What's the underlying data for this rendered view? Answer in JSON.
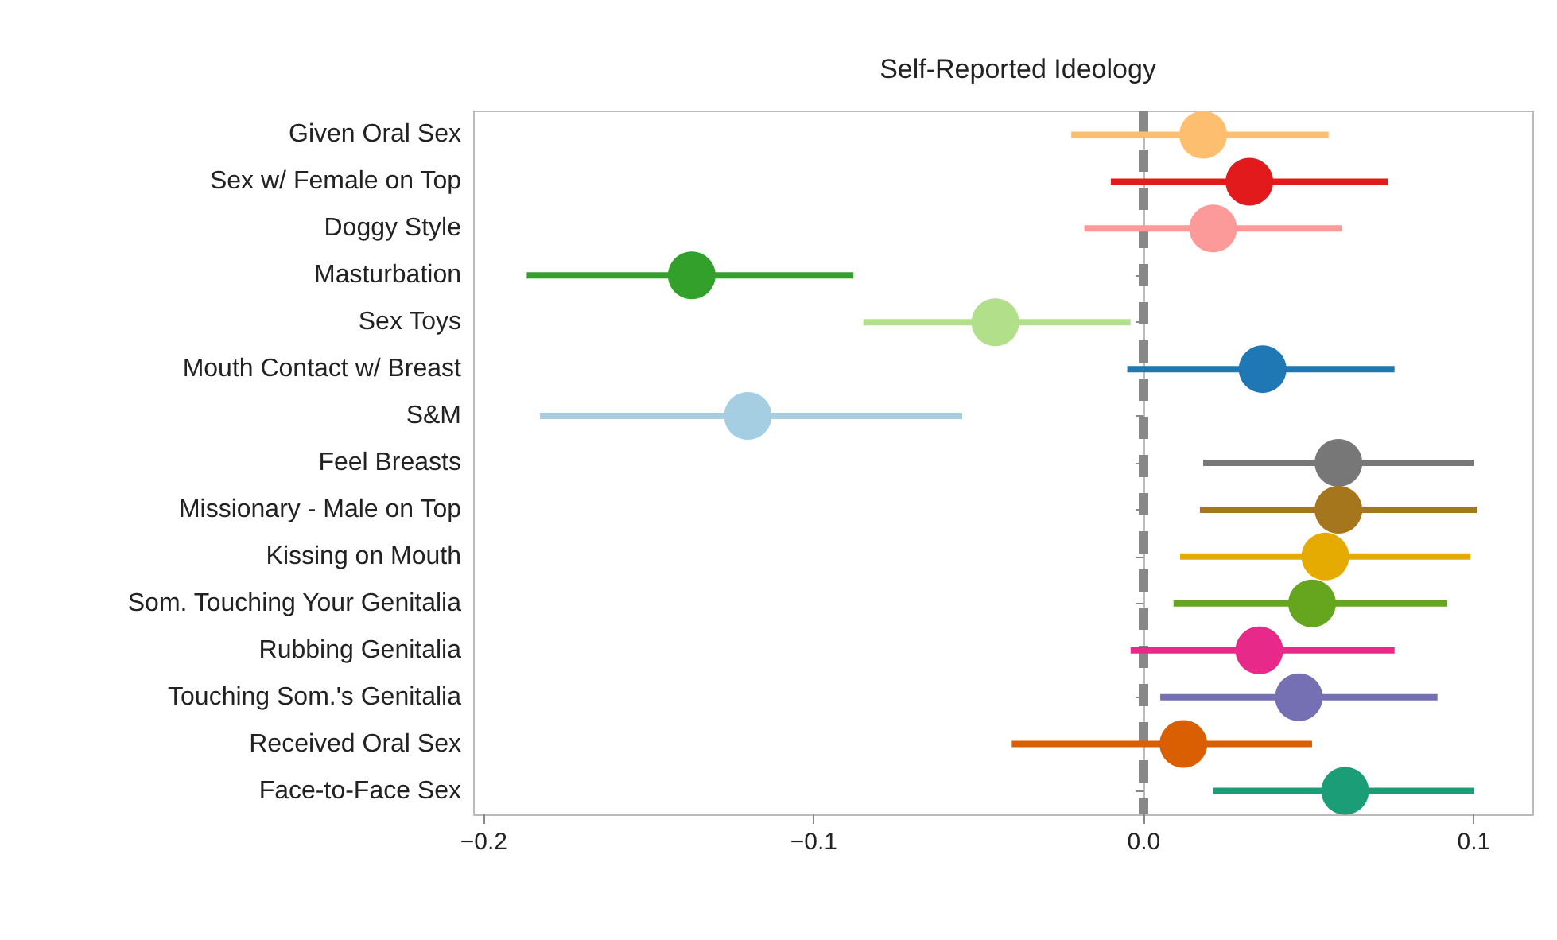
{
  "chart_data": {
    "type": "scatter",
    "title": "Self-Reported Ideology",
    "orientation": "horizontal",
    "marker": "circle",
    "grid": false,
    "categories": [
      "Given Oral Sex",
      "Sex w/ Female on Top",
      "Doggy Style",
      "Masturbation",
      "Sex Toys",
      "Mouth Contact w/ Breast",
      "S&M",
      "Feel Breasts",
      "Missionary - Male on Top",
      "Kissing on Mouth",
      "Som. Touching Your Genitalia",
      "Rubbing Genitalia",
      "Touching Som.'s Genitalia",
      "Received Oral Sex",
      "Face-to-Face Sex"
    ],
    "values": [
      0.018,
      0.032,
      0.021,
      -0.137,
      -0.045,
      0.036,
      -0.12,
      0.059,
      0.059,
      0.055,
      0.051,
      0.035,
      0.047,
      0.012,
      0.061
    ],
    "errors": [
      [
        -0.022,
        0.056
      ],
      [
        -0.01,
        0.074
      ],
      [
        -0.018,
        0.06
      ],
      [
        -0.187,
        -0.088
      ],
      [
        -0.085,
        -0.004
      ],
      [
        -0.005,
        0.076
      ],
      [
        -0.183,
        -0.055
      ],
      [
        0.018,
        0.1
      ],
      [
        0.017,
        0.101
      ],
      [
        0.011,
        0.099
      ],
      [
        0.009,
        0.092
      ],
      [
        -0.004,
        0.076
      ],
      [
        0.005,
        0.089
      ],
      [
        -0.04,
        0.051
      ],
      [
        0.021,
        0.1
      ]
    ],
    "colors": [
      "#fdbf6f",
      "#e31a1c",
      "#fb9a99",
      "#33a02c",
      "#b2df8a",
      "#1f78b4",
      "#a6cee3",
      "#777777",
      "#a6761d",
      "#e6ab02",
      "#66a61e",
      "#e7298a",
      "#7570b3",
      "#d95f02",
      "#1b9e77"
    ],
    "xlim": [
      -0.203,
      0.118
    ],
    "xticks": [
      {
        "value": -0.2,
        "label": "−0.2"
      },
      {
        "value": -0.1,
        "label": "−0.1"
      },
      {
        "value": 0,
        "label": "0.0"
      },
      {
        "value": 0.1,
        "label": "0.1"
      }
    ],
    "ref_lines": [
      {
        "axis": "x",
        "value": 0,
        "label": null,
        "color": "#888888",
        "line_style": "dashed"
      }
    ]
  }
}
